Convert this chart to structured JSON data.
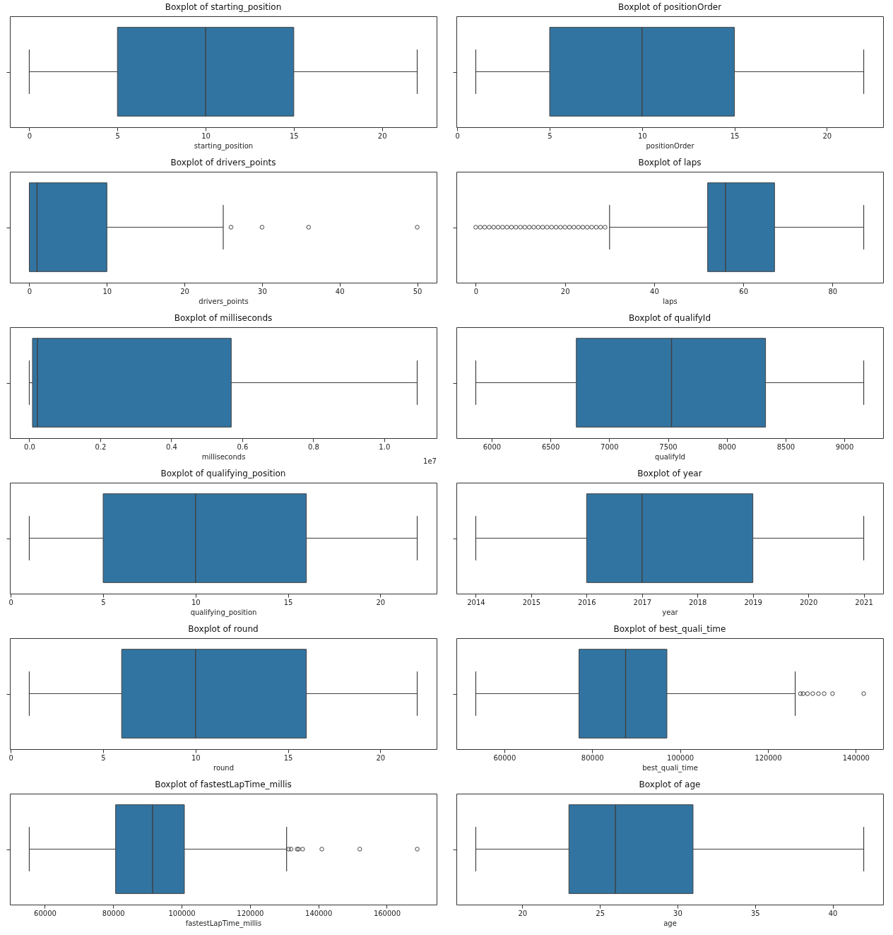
{
  "chart_data": [
    {
      "type": "box",
      "title": "Boxplot of starting_position",
      "xlabel": "starting_position",
      "categories": [
        null
      ],
      "orientation": "horizontal",
      "color": "#3274a1",
      "tick_labels": "x",
      "xlim": [
        -1.1,
        23.1
      ],
      "xticks": [
        0,
        5,
        10,
        15,
        20
      ],
      "boxes": [
        {
          "low": 0,
          "q1": 5,
          "median": 10,
          "q3": 15,
          "high": 22
        }
      ]
    },
    {
      "type": "box",
      "title": "Boxplot of positionOrder",
      "xlabel": "positionOrder",
      "categories": [
        null
      ],
      "orientation": "horizontal",
      "color": "#3274a1",
      "tick_labels": "x",
      "xlim": [
        -0.05,
        23.05
      ],
      "xticks": [
        0,
        5,
        10,
        15,
        20
      ],
      "boxes": [
        {
          "low": 1,
          "q1": 5,
          "median": 10,
          "q3": 15,
          "high": 22
        }
      ]
    },
    {
      "type": "box",
      "title": "Boxplot of drivers_points",
      "xlabel": "drivers_points",
      "categories": [
        null
      ],
      "orientation": "horizontal",
      "color": "#3274a1",
      "tick_labels": "x",
      "xlim": [
        -2.5,
        52.5
      ],
      "xticks": [
        0,
        10,
        20,
        30,
        40,
        50
      ],
      "boxes": [
        {
          "low": 0,
          "q1": 0,
          "median": 1,
          "q3": 10,
          "high": 25,
          "outliers": [
            26,
            30,
            36,
            50
          ]
        }
      ]
    },
    {
      "type": "box",
      "title": "Boxplot of laps",
      "xlabel": "laps",
      "categories": [
        null
      ],
      "orientation": "horizontal",
      "color": "#3274a1",
      "tick_labels": "x",
      "xlim": [
        -4.35,
        91.35
      ],
      "xticks": [
        0,
        20,
        40,
        60,
        80
      ],
      "boxes": [
        {
          "low": 30,
          "q1": 52,
          "median": 56,
          "q3": 67,
          "high": 87,
          "outliers": [
            0,
            1,
            2,
            3,
            4,
            5,
            6,
            7,
            8,
            9,
            10,
            11,
            12,
            13,
            14,
            15,
            16,
            17,
            18,
            19,
            20,
            21,
            22,
            23,
            24,
            25,
            26,
            27,
            28,
            29
          ]
        }
      ]
    },
    {
      "type": "box",
      "title": "Boxplot of milliseconds",
      "xlabel": "milliseconds",
      "categories": [
        null
      ],
      "orientation": "horizontal",
      "color": "#3274a1",
      "tick_labels": "x",
      "xlim": [
        -0.0547,
        1.1477
      ],
      "xticks": [
        {
          "value": 0,
          "label": "0.0"
        },
        0.2,
        0.4,
        0.6,
        0.8,
        {
          "value": 1,
          "label": "1.0"
        }
      ],
      "annotations": [
        "1e7"
      ],
      "boxes": [
        {
          "low": 0,
          "q1": 0.009,
          "median": 0.023,
          "q3": 0.569,
          "high": 1.093
        }
      ]
    },
    {
      "type": "box",
      "title": "Boxplot of qualifyId",
      "xlabel": "qualifyId",
      "categories": [
        null
      ],
      "orientation": "horizontal",
      "color": "#3274a1",
      "tick_labels": "x",
      "xlim": [
        5700,
        9330
      ],
      "xticks": [
        6000,
        6500,
        7000,
        7500,
        8000,
        8500,
        9000
      ],
      "boxes": [
        {
          "low": 5865,
          "q1": 6720,
          "median": 7530,
          "q3": 8330,
          "high": 9165
        }
      ]
    },
    {
      "type": "box",
      "title": "Boxplot of qualifying_position",
      "xlabel": "qualifying_position",
      "categories": [
        null
      ],
      "orientation": "horizontal",
      "color": "#3274a1",
      "tick_labels": "x",
      "xlim": [
        -0.05,
        23.05
      ],
      "xticks": [
        0,
        5,
        10,
        15,
        20
      ],
      "boxes": [
        {
          "low": 1,
          "q1": 5,
          "median": 10,
          "q3": 16,
          "high": 22
        }
      ]
    },
    {
      "type": "box",
      "title": "Boxplot of year",
      "xlabel": "year",
      "categories": [
        null
      ],
      "orientation": "horizontal",
      "color": "#3274a1",
      "tick_labels": "x",
      "xlim": [
        2013.65,
        2021.35
      ],
      "xticks": [
        2014,
        2015,
        2016,
        2017,
        2018,
        2019,
        2020,
        2021
      ],
      "boxes": [
        {
          "low": 2014,
          "q1": 2016,
          "median": 2017,
          "q3": 2019,
          "high": 2021
        }
      ]
    },
    {
      "type": "box",
      "title": "Boxplot of round",
      "xlabel": "round",
      "categories": [
        null
      ],
      "orientation": "horizontal",
      "color": "#3274a1",
      "tick_labels": "x",
      "xlim": [
        -0.05,
        23.05
      ],
      "xticks": [
        0,
        5,
        10,
        15,
        20
      ],
      "boxes": [
        {
          "low": 1,
          "q1": 6,
          "median": 10,
          "q3": 16,
          "high": 22
        }
      ]
    },
    {
      "type": "box",
      "title": "Boxplot of best_quali_time",
      "xlabel": "best_quali_time",
      "categories": [
        null
      ],
      "orientation": "horizontal",
      "color": "#3274a1",
      "tick_labels": "x",
      "xlim": [
        49085,
        146215
      ],
      "xticks": [
        60000,
        80000,
        100000,
        120000,
        140000
      ],
      "boxes": [
        {
          "low": 53500,
          "q1": 77000,
          "median": 87600,
          "q3": 97000,
          "high": 126200,
          "outliers": [
            127400,
            128000,
            129000,
            130200,
            131500,
            132800,
            134700,
            141800
          ]
        }
      ]
    },
    {
      "type": "box",
      "title": "Boxplot of fastestLapTime_millis",
      "xlabel": "fastestLapTime_millis",
      "categories": [
        null
      ],
      "orientation": "horizontal",
      "color": "#3274a1",
      "tick_labels": "x",
      "xlim": [
        49780,
        174570
      ],
      "xticks": [
        60000,
        80000,
        100000,
        120000,
        140000,
        160000
      ],
      "boxes": [
        {
          "low": 55450,
          "q1": 80700,
          "median": 91500,
          "q3": 100800,
          "high": 130700,
          "outliers": [
            131300,
            132000,
            133800,
            134200,
            135400,
            141000,
            152100,
            168900
          ]
        }
      ]
    },
    {
      "type": "box",
      "title": "Boxplot of age",
      "xlabel": "age",
      "categories": [
        null
      ],
      "orientation": "horizontal",
      "color": "#3274a1",
      "tick_labels": "x",
      "xlim": [
        15.75,
        43.25
      ],
      "xticks": [
        20,
        25,
        30,
        35,
        40
      ],
      "boxes": [
        {
          "low": 17,
          "q1": 23,
          "median": 26,
          "q3": 31,
          "high": 42
        }
      ]
    }
  ]
}
